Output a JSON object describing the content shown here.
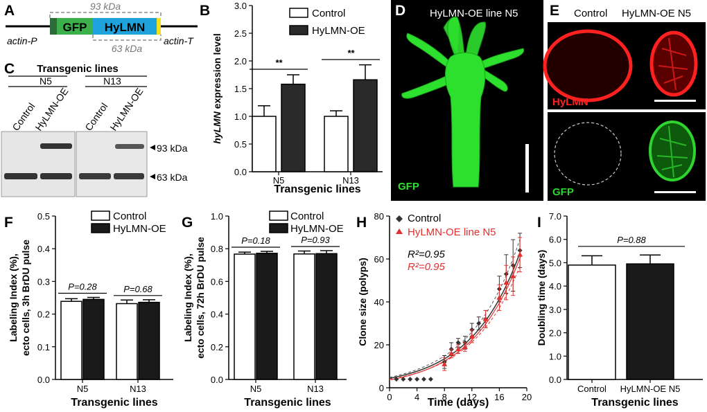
{
  "panel_labels": {
    "A": "A",
    "B": "B",
    "C": "C",
    "D": "D",
    "E": "E",
    "F": "F",
    "G": "G",
    "H": "H",
    "I": "I"
  },
  "construct": {
    "promoter": "actin-P",
    "gfp": "GFP",
    "hylmn": "HyLMN",
    "terminator": "actin-T",
    "size_top": "93 kDa",
    "size_bottom": "63 kDa",
    "colors": {
      "gfp": "#3cb04a",
      "hylmn": "#1fa3dc",
      "terminator_end": "#f2e21b",
      "start_block": "#2e6b3a"
    }
  },
  "blot": {
    "title": "Transgenic lines",
    "line1": "N5",
    "line2": "N13",
    "lanes": [
      "Control",
      "HyLMN-OE",
      "Control",
      "HyLMN-OE"
    ],
    "marker_top": "93 kDa",
    "marker_bottom": "63 kDa"
  },
  "micro_d": {
    "title": "HyLMN-OE line N5",
    "channel": "GFP",
    "color": "#2ee02e"
  },
  "micro_e": {
    "control": "Control",
    "oe": "HyLMN-OE N5",
    "top_channel": "HyLMN",
    "bottom_channel": "GFP",
    "red": "#ff2020",
    "green": "#2fd52f"
  },
  "legend": {
    "control": "Control",
    "oe": "HyLMN-OE"
  },
  "chart_data": [
    {
      "id": "B",
      "type": "bar",
      "title": "",
      "ylabel_italic": "hyLMN",
      "ylabel_rest": " expression level",
      "xlabel": "Transgenic lines",
      "categories": [
        "N5",
        "N13"
      ],
      "series": [
        {
          "name": "Control",
          "values": [
            1.0,
            1.0
          ],
          "errors": [
            0.19,
            0.1
          ],
          "color": "#ffffff"
        },
        {
          "name": "HyLMN-OE",
          "values": [
            1.58,
            1.66
          ],
          "errors": [
            0.17,
            0.27
          ],
          "color": "#2a2a2a"
        }
      ],
      "ylim": [
        0,
        3.0
      ],
      "yticks": [
        "0.0",
        "0.5",
        "1.0",
        "1.5",
        "2.0",
        "2.5",
        "3.0"
      ],
      "annotations": [
        "**",
        "**"
      ]
    },
    {
      "id": "F",
      "type": "bar",
      "ylabel_lines": [
        "Labeling Index (%),",
        "ecto cells, 3h BrDU pulse"
      ],
      "xlabel": "Transgenic lines",
      "categories": [
        "N5",
        "N13"
      ],
      "series": [
        {
          "name": "Control",
          "values": [
            0.239,
            0.232
          ],
          "errors": [
            0.008,
            0.011
          ],
          "color": "#ffffff"
        },
        {
          "name": "HyLMN-OE",
          "values": [
            0.245,
            0.236
          ],
          "errors": [
            0.006,
            0.008
          ],
          "color": "#1a1a1a"
        }
      ],
      "ylim": [
        0,
        0.5
      ],
      "yticks": [
        "0.0",
        "0.1",
        "0.2",
        "0.3",
        "0.4",
        "0.5"
      ],
      "annotations": [
        "P=0.28",
        "P=0.68"
      ]
    },
    {
      "id": "G",
      "type": "bar",
      "ylabel_lines": [
        "Labeling Index (%),",
        "ecto cells, 72h BrDU pulse"
      ],
      "xlabel": "Transgenic lines",
      "categories": [
        "N5",
        "N13"
      ],
      "series": [
        {
          "name": "Control",
          "values": [
            0.767,
            0.768
          ],
          "errors": [
            0.012,
            0.018
          ],
          "color": "#ffffff"
        },
        {
          "name": "HyLMN-OE",
          "values": [
            0.772,
            0.77
          ],
          "errors": [
            0.012,
            0.018
          ],
          "color": "#1a1a1a"
        }
      ],
      "ylim": [
        0,
        1.0
      ],
      "yticks": [
        "0.0",
        "0.2",
        "0.4",
        "0.6",
        "0.8",
        "1.0"
      ],
      "annotations": [
        "P=0.18",
        "P=0.93"
      ]
    },
    {
      "id": "H",
      "type": "scatter",
      "xlabel": "Time (days)",
      "ylabel": "Clone size (polyps)",
      "xlim": [
        0,
        20
      ],
      "ylim": [
        0,
        80
      ],
      "xticks": [
        "0",
        "4",
        "8",
        "12",
        "16",
        "20"
      ],
      "yticks": [
        "0",
        "20",
        "40",
        "60",
        "80"
      ],
      "series": [
        {
          "name": "Control",
          "color": "#333333",
          "marker": "diamond",
          "x": [
            1,
            2,
            3,
            4,
            5,
            6,
            8,
            9,
            10,
            11,
            12,
            13,
            14,
            16,
            17,
            18,
            19
          ],
          "y": [
            4,
            4,
            4,
            4,
            4,
            4,
            12,
            18,
            21,
            21,
            27,
            30,
            32,
            46,
            53,
            57,
            64
          ],
          "errors": [
            0,
            0,
            0,
            0,
            0,
            0,
            3,
            3,
            2,
            3,
            3,
            3,
            4,
            6,
            9,
            12,
            8
          ],
          "r2": "R²=0.95"
        },
        {
          "name": "HyLMN-OE line N5",
          "color": "#e03030",
          "marker": "triangle",
          "x": [
            8,
            9,
            10,
            11,
            12,
            14,
            16,
            17,
            18,
            19
          ],
          "y": [
            11,
            16,
            18,
            19,
            24,
            32,
            42,
            49,
            52,
            62
          ],
          "errors": [
            3,
            2,
            2,
            2,
            3,
            4,
            6,
            8,
            9,
            8
          ],
          "r2": "R²=0.95"
        }
      ],
      "fit": {
        "a": 4.4,
        "b": 0.14
      }
    },
    {
      "id": "I",
      "type": "bar",
      "ylabel": "Doubling time (days)",
      "xlabel": "Transgenic lines",
      "categories": [
        "Control",
        "HyLMN-OE N5"
      ],
      "series": [
        {
          "name": "values",
          "values": [
            4.9,
            4.95
          ],
          "errors": [
            0.4,
            0.38
          ],
          "colors": [
            "#ffffff",
            "#1a1a1a"
          ]
        }
      ],
      "ylim": [
        0,
        7.0
      ],
      "yticks": [
        "0.0",
        "1.0",
        "2.0",
        "3.0",
        "4.0",
        "5.0",
        "6.0",
        "7.0"
      ],
      "annotations": [
        "P=0.88"
      ]
    }
  ]
}
